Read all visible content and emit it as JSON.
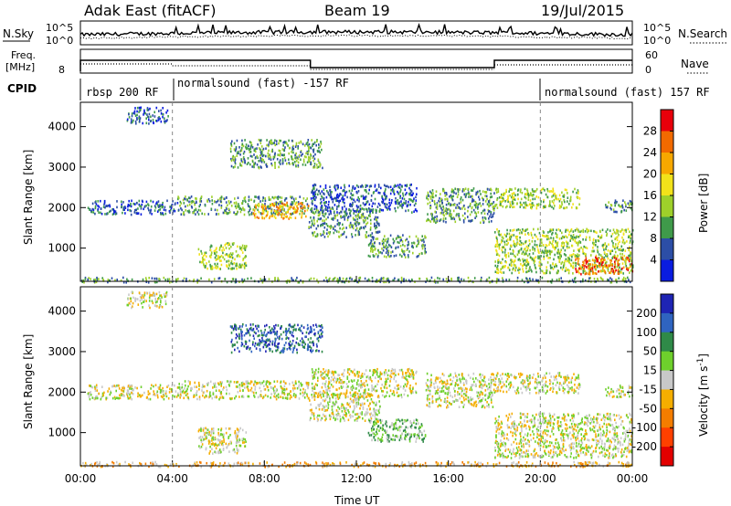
{
  "header": {
    "title": "Adak East (fitACF)",
    "beam": "Beam 19",
    "date": "19/Jul/2015"
  },
  "noise_panel": {
    "left_label": "N.Sky",
    "left_ticks": [
      "10^5",
      "10^0"
    ],
    "right_ticks": [
      "10^5",
      "10^0"
    ],
    "right_label": "N.Search"
  },
  "freq_panel": {
    "left_label_1": "Freq.",
    "left_label_2": "[MHz]",
    "left_ticks": [
      "8"
    ],
    "right_ticks": [
      "60",
      "0"
    ],
    "right_label": "Nave"
  },
  "cpid": {
    "label": "CPID",
    "segments": [
      {
        "text": "rbsp 200 RF",
        "start_h": 0,
        "end_h": 4
      },
      {
        "text": "normalsound (fast) -157 RF",
        "start_h": 4,
        "end_h": 20
      },
      {
        "text": "normalsound (fast) 157 RF",
        "start_h": 20,
        "end_h": 24
      }
    ]
  },
  "chart_data": [
    {
      "type": "heatmap",
      "name": "power",
      "ylabel": "Slant Range [km]",
      "ylim": [
        180,
        4600
      ],
      "xlim_hours": [
        0,
        24
      ],
      "yticks": [
        1000,
        2000,
        3000,
        4000
      ],
      "colorbar": {
        "label": "Power [dB]",
        "ticks": [
          "28",
          "24",
          "20",
          "16",
          "12",
          "8",
          "4"
        ],
        "colors": [
          "#e8000b",
          "#f26a00",
          "#f7a800",
          "#f2e21a",
          "#9ed02a",
          "#3f9a4a",
          "#2c4ea6",
          "#0a1ce0"
        ]
      },
      "echo_regions": [
        {
          "t0": 0.3,
          "t1": 4.2,
          "r0": 1850,
          "r1": 2200,
          "level": 6
        },
        {
          "t0": 4.2,
          "t1": 9.9,
          "r0": 1850,
          "r1": 2300,
          "level": 5
        },
        {
          "t0": 5.1,
          "t1": 7.2,
          "r0": 500,
          "r1": 1150,
          "level": 4
        },
        {
          "t0": 7.5,
          "t1": 9.9,
          "r0": 1750,
          "r1": 2150,
          "level": 2
        },
        {
          "t0": 9.9,
          "t1": 13.0,
          "r0": 1300,
          "r1": 2000,
          "level": 5
        },
        {
          "t0": 10.0,
          "t1": 14.6,
          "r0": 1900,
          "r1": 2600,
          "level": 6
        },
        {
          "t0": 12.5,
          "t1": 15.0,
          "r0": 800,
          "r1": 1350,
          "level": 5
        },
        {
          "t0": 15.0,
          "t1": 18.0,
          "r0": 1650,
          "r1": 2500,
          "level": 5
        },
        {
          "t0": 18.0,
          "t1": 21.7,
          "r0": 2000,
          "r1": 2500,
          "level": 4
        },
        {
          "t0": 18.0,
          "t1": 24.0,
          "r0": 400,
          "r1": 1500,
          "level": 4
        },
        {
          "t0": 21.5,
          "t1": 24.0,
          "r0": 380,
          "r1": 800,
          "level": 1
        },
        {
          "t0": 22.8,
          "t1": 24.0,
          "r0": 1900,
          "r1": 2200,
          "level": 5
        },
        {
          "t0": 2.0,
          "t1": 3.8,
          "r0": 4100,
          "r1": 4500,
          "level": 6
        },
        {
          "t0": 6.5,
          "t1": 10.5,
          "r0": 3000,
          "r1": 3700,
          "level": 5
        },
        {
          "t0": 0.0,
          "t1": 24.0,
          "r0": 180,
          "r1": 300,
          "level": 5
        }
      ]
    },
    {
      "type": "heatmap",
      "name": "velocity",
      "ylabel": "Slant Range [km]",
      "xlabel": "Time UT",
      "xticks": [
        "00:00",
        "04:00",
        "08:00",
        "12:00",
        "16:00",
        "20:00",
        "00:00"
      ],
      "ylim": [
        180,
        4600
      ],
      "yticks": [
        1000,
        2000,
        3000,
        4000
      ],
      "colorbar": {
        "label": "Velocity [m s^-1]",
        "ticks": [
          "200",
          "100",
          "50",
          "15",
          "-15",
          "-50",
          "-100",
          "-200"
        ],
        "colors": [
          "#1e24b4",
          "#2f64c0",
          "#2f8a48",
          "#6ed02c",
          "#c8c8c8",
          "#f5ae00",
          "#f47d00",
          "#ff4000",
          "#e30000"
        ]
      },
      "echo_regions": [
        {
          "t0": 0.3,
          "t1": 4.2,
          "r0": 1850,
          "r1": 2200,
          "level": 4
        },
        {
          "t0": 4.2,
          "t1": 9.9,
          "r0": 1850,
          "r1": 2300,
          "level": 4
        },
        {
          "t0": 5.1,
          "t1": 7.2,
          "r0": 500,
          "r1": 1150,
          "level": 4
        },
        {
          "t0": 9.9,
          "t1": 13.0,
          "r0": 1300,
          "r1": 2000,
          "level": 4
        },
        {
          "t0": 10.0,
          "t1": 14.6,
          "r0": 1900,
          "r1": 2600,
          "level": 4
        },
        {
          "t0": 12.5,
          "t1": 15.0,
          "r0": 800,
          "r1": 1350,
          "level": 3
        },
        {
          "t0": 15.0,
          "t1": 18.0,
          "r0": 1650,
          "r1": 2500,
          "level": 4
        },
        {
          "t0": 18.0,
          "t1": 21.7,
          "r0": 2000,
          "r1": 2500,
          "level": 4
        },
        {
          "t0": 18.0,
          "t1": 24.0,
          "r0": 400,
          "r1": 1500,
          "level": 4
        },
        {
          "t0": 22.8,
          "t1": 24.0,
          "r0": 1900,
          "r1": 2200,
          "level": 4
        },
        {
          "t0": 2.0,
          "t1": 3.8,
          "r0": 4100,
          "r1": 4500,
          "level": 4
        },
        {
          "t0": 6.5,
          "t1": 10.5,
          "r0": 3000,
          "r1": 3700,
          "level": 1
        },
        {
          "t0": 0.0,
          "t1": 24.0,
          "r0": 180,
          "r1": 300,
          "level": 5
        }
      ]
    }
  ]
}
